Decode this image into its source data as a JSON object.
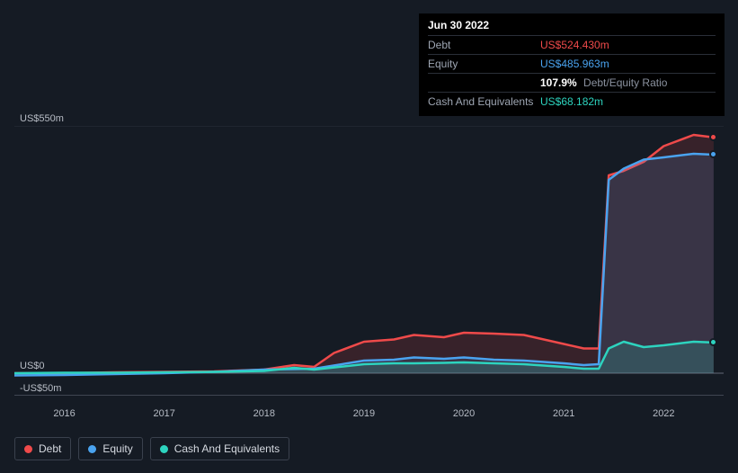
{
  "tooltip": {
    "date": "Jun 30 2022",
    "debt_label": "Debt",
    "debt_value": "US$524.430m",
    "equity_label": "Equity",
    "equity_value": "US$485.963m",
    "ratio_pct": "107.9%",
    "ratio_label": "Debt/Equity Ratio",
    "cash_label": "Cash And Equivalents",
    "cash_value": "US$68.182m"
  },
  "chart": {
    "type": "area",
    "background_color": "#151b24",
    "ylim": [
      -50,
      550
    ],
    "yticks": [
      {
        "v": 550,
        "label": "US$550m"
      },
      {
        "v": 0,
        "label": "US$0"
      },
      {
        "v": -50,
        "label": "-US$50m"
      }
    ],
    "xlim": [
      2015.5,
      2022.6
    ],
    "xticks": [
      2016,
      2017,
      2018,
      2019,
      2020,
      2021,
      2022
    ],
    "series": {
      "debt": {
        "label": "Debt",
        "color": "#ef4a4a",
        "fill": "rgba(239,74,74,0.16)",
        "data": [
          [
            2015.5,
            0
          ],
          [
            2016,
            0
          ],
          [
            2016.5,
            2
          ],
          [
            2017,
            3
          ],
          [
            2017.5,
            4
          ],
          [
            2018,
            8
          ],
          [
            2018.3,
            18
          ],
          [
            2018.5,
            14
          ],
          [
            2018.7,
            45
          ],
          [
            2019,
            70
          ],
          [
            2019.3,
            75
          ],
          [
            2019.5,
            85
          ],
          [
            2019.8,
            80
          ],
          [
            2020,
            90
          ],
          [
            2020.3,
            88
          ],
          [
            2020.6,
            85
          ],
          [
            2021,
            65
          ],
          [
            2021.2,
            55
          ],
          [
            2021.35,
            55
          ],
          [
            2021.45,
            440
          ],
          [
            2021.6,
            450
          ],
          [
            2021.8,
            470
          ],
          [
            2022,
            505
          ],
          [
            2022.3,
            530
          ],
          [
            2022.5,
            524.4
          ]
        ]
      },
      "equity": {
        "label": "Equity",
        "color": "#4aa3ef",
        "fill": "rgba(74,163,239,0.14)",
        "data": [
          [
            2015.5,
            -5
          ],
          [
            2016,
            -4
          ],
          [
            2016.5,
            -2
          ],
          [
            2017,
            0
          ],
          [
            2017.5,
            3
          ],
          [
            2018,
            8
          ],
          [
            2018.5,
            10
          ],
          [
            2019,
            28
          ],
          [
            2019.3,
            30
          ],
          [
            2019.5,
            35
          ],
          [
            2019.8,
            32
          ],
          [
            2020,
            35
          ],
          [
            2020.3,
            30
          ],
          [
            2020.6,
            28
          ],
          [
            2021,
            22
          ],
          [
            2021.2,
            18
          ],
          [
            2021.35,
            20
          ],
          [
            2021.45,
            430
          ],
          [
            2021.6,
            455
          ],
          [
            2021.8,
            475
          ],
          [
            2022,
            480
          ],
          [
            2022.3,
            488
          ],
          [
            2022.5,
            486
          ]
        ]
      },
      "cash": {
        "label": "Cash And Equivalents",
        "color": "#2dd4bf",
        "fill": "rgba(45,212,191,0.18)",
        "data": [
          [
            2015.5,
            0
          ],
          [
            2016,
            1
          ],
          [
            2016.5,
            1
          ],
          [
            2017,
            2
          ],
          [
            2017.5,
            3
          ],
          [
            2018,
            5
          ],
          [
            2018.3,
            12
          ],
          [
            2018.5,
            8
          ],
          [
            2019,
            20
          ],
          [
            2019.3,
            22
          ],
          [
            2019.5,
            22
          ],
          [
            2019.8,
            23
          ],
          [
            2020,
            24
          ],
          [
            2020.3,
            22
          ],
          [
            2020.6,
            20
          ],
          [
            2021,
            14
          ],
          [
            2021.2,
            10
          ],
          [
            2021.35,
            10
          ],
          [
            2021.45,
            55
          ],
          [
            2021.6,
            70
          ],
          [
            2021.8,
            58
          ],
          [
            2022,
            62
          ],
          [
            2022.3,
            70
          ],
          [
            2022.5,
            68.2
          ]
        ]
      }
    },
    "line_width": 2.5,
    "axis_color": "#6b7180",
    "label_fontsize": 11
  },
  "legend": {
    "debt": "Debt",
    "equity": "Equity",
    "cash": "Cash And Equivalents"
  }
}
